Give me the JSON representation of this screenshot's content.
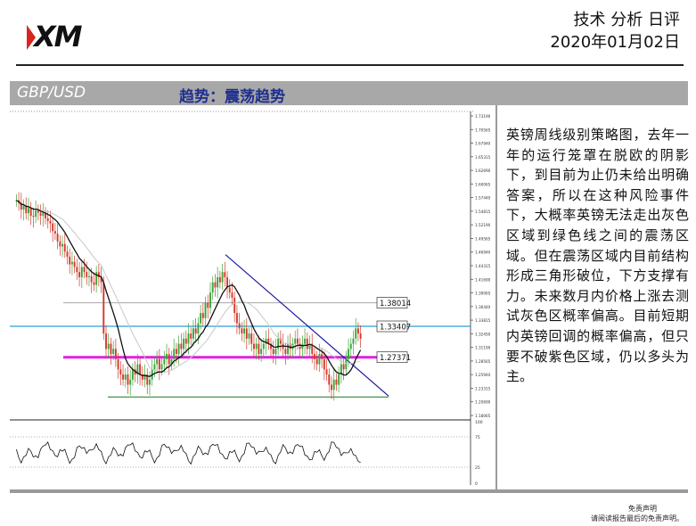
{
  "brand": {
    "logo_text": "XM"
  },
  "header": {
    "title": "技术 分析 日评",
    "date": "2020年01月02日"
  },
  "banner": {
    "pair": "GBP/USD",
    "trend": "趋势：震荡趋势"
  },
  "analysis": {
    "text": "英镑周线级别策略图，去年一年的运行笼罩在脱欧的阴影下，到目前为止仍未给出明确答案，所以在这种风险事件下，大概率英镑无法走出灰色区域到绿色线之间的震荡区域。但在震荡区域内目前结构形成三角形破位，下方支撑有力。未来数月内价格上涨去测试灰色区概率偏高。目前短期内英镑回调的概率偏高，但只要不破紫色区域，仍以多头为主。"
  },
  "disclaimer": {
    "title": "免责声明",
    "body": "请阅读报告最后的免责声明。"
  },
  "chart_data": {
    "type": "line",
    "pair": "GBP/USD",
    "timeframe": "weekly",
    "y_ticks": [
      "1.73190",
      "1.70565",
      "1.67940",
      "1.65315",
      "1.62690",
      "1.60065",
      "1.57440",
      "1.54815",
      "1.52190",
      "1.49565",
      "1.46940",
      "1.44315",
      "1.41690",
      "1.39065",
      "1.36440",
      "1.33815",
      "1.32450",
      "1.31190",
      "1.28565",
      "1.25940",
      "1.23315",
      "1.20690",
      "1.18065"
    ],
    "ylim": [
      1.16,
      1.745
    ],
    "levels": [
      {
        "label": "1.38014",
        "value": 1.38014,
        "color": "#b0b0b0"
      },
      {
        "label": "1.33407",
        "value": 1.33407,
        "color": "#2a9fd6"
      },
      {
        "label": "1.27371",
        "value": 1.27371,
        "color": "#e020e0"
      }
    ],
    "support_line": {
      "value": 1.196,
      "color": "#2e8b2e"
    },
    "trendline": {
      "from": 1.474,
      "to": 1.198,
      "color": "#1a1aa0"
    },
    "close_values": [
      1.58,
      1.575,
      1.562,
      1.57,
      1.555,
      1.565,
      1.55,
      1.548,
      1.56,
      1.556,
      1.55,
      1.555,
      1.545,
      1.54,
      1.535,
      1.52,
      1.515,
      1.5,
      1.49,
      1.495,
      1.48,
      1.47,
      1.455,
      1.46,
      1.45,
      1.44,
      1.43,
      1.45,
      1.44,
      1.43,
      1.432,
      1.42,
      1.415,
      1.44,
      1.43,
      1.42,
      1.32,
      1.29,
      1.3,
      1.28,
      1.29,
      1.27,
      1.25,
      1.24,
      1.23,
      1.24,
      1.22,
      1.23,
      1.25,
      1.24,
      1.26,
      1.24,
      1.23,
      1.24,
      1.22,
      1.23,
      1.25,
      1.26,
      1.27,
      1.25,
      1.26,
      1.27,
      1.28,
      1.26,
      1.27,
      1.29,
      1.28,
      1.3,
      1.29,
      1.31,
      1.3,
      1.32,
      1.31,
      1.33,
      1.32,
      1.34,
      1.36,
      1.35,
      1.38,
      1.37,
      1.4,
      1.42,
      1.41,
      1.43,
      1.42,
      1.44,
      1.43,
      1.41,
      1.4,
      1.39,
      1.36,
      1.34,
      1.33,
      1.32,
      1.33,
      1.31,
      1.32,
      1.3,
      1.29,
      1.3,
      1.28,
      1.29,
      1.3,
      1.31,
      1.3,
      1.29,
      1.28,
      1.29,
      1.31,
      1.3,
      1.29,
      1.28,
      1.3,
      1.29,
      1.3,
      1.31,
      1.3,
      1.29,
      1.3,
      1.31,
      1.29,
      1.3,
      1.28,
      1.27,
      1.26,
      1.28,
      1.27,
      1.25,
      1.24,
      1.22,
      1.21,
      1.23,
      1.22,
      1.24,
      1.26,
      1.25,
      1.27,
      1.29,
      1.3,
      1.31,
      1.33,
      1.32,
      1.31
    ],
    "oscillator": {
      "levels": [
        "100",
        "75",
        "25",
        "0"
      ]
    }
  }
}
